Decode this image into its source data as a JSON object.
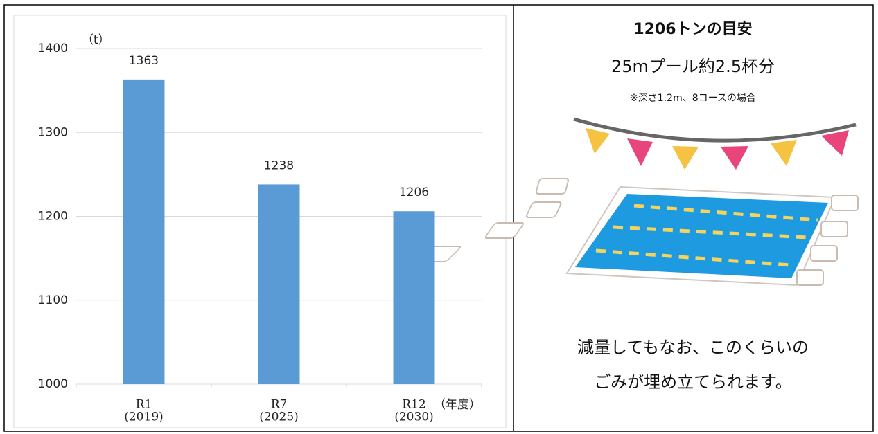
{
  "chart_data": {
    "type": "bar",
    "y_unit": "（t）",
    "x_unit": "（年度）",
    "categories": [
      "R1",
      "R7",
      "R12"
    ],
    "category_years": [
      "(2019)",
      "(2025)",
      "(2030)"
    ],
    "values": [
      1363,
      1238,
      1206
    ],
    "color": "#5b9bd5",
    "ylim": [
      1000,
      1400
    ],
    "yticks": [
      1000,
      1100,
      1200,
      1300,
      1400
    ],
    "grid": true
  },
  "panel": {
    "title": "1206トンの目安",
    "subtitle": "25mプール約2.5杯分",
    "note": "※深さ1.2m、8コースの場合",
    "message": [
      "減量してもなお、このくらいの",
      "ごみが埋め立てられます。"
    ]
  }
}
